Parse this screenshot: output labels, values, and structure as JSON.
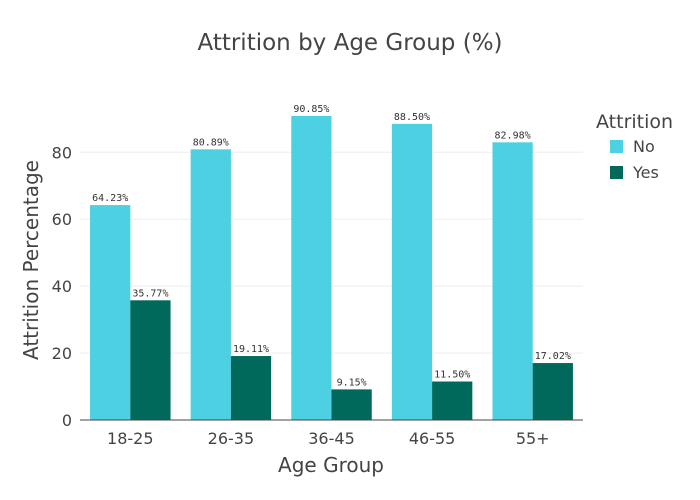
{
  "chart_data": {
    "type": "bar",
    "title": "Attrition by Age Group (%)",
    "xlabel": "Age Group",
    "ylabel": "Attrition Percentage",
    "categories": [
      "18-25",
      "26-35",
      "36-45",
      "46-55",
      "55+"
    ],
    "series": [
      {
        "name": "No",
        "values": [
          64.23,
          80.89,
          90.85,
          88.5,
          82.98
        ],
        "labels": [
          "64.23%",
          "80.89%",
          "90.85%",
          "88.50%",
          "82.98%"
        ],
        "color": "#4dd0e1"
      },
      {
        "name": "Yes",
        "values": [
          35.77,
          19.11,
          9.15,
          11.5,
          17.02
        ],
        "labels": [
          "35.77%",
          "19.11%",
          "9.15%",
          "11.50%",
          "17.02%"
        ],
        "color": "#00695c"
      }
    ],
    "ylim": [
      0,
      95.63
    ],
    "yticks": [
      0,
      20,
      40,
      60,
      80
    ],
    "grid": true,
    "legend": {
      "title": "Attrition",
      "position": "right"
    }
  }
}
